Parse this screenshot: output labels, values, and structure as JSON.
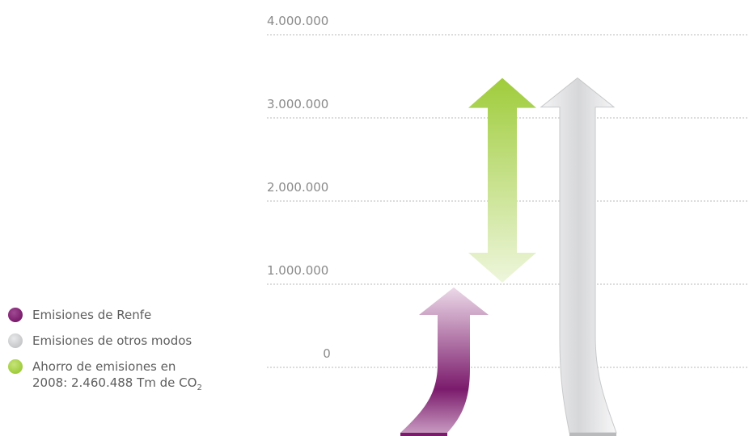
{
  "chart_data": {
    "type": "bar",
    "ylim": [
      0,
      4000000
    ],
    "ticks": [
      {
        "value": 4000000,
        "label": "4.000.000"
      },
      {
        "value": 3000000,
        "label": "3.000.000"
      },
      {
        "value": 2000000,
        "label": "2.000.000"
      },
      {
        "value": 1000000,
        "label": "1.000.000"
      },
      {
        "value": 0,
        "label": "0"
      }
    ],
    "grid": true,
    "series": [
      {
        "name": "Emisiones de Renfe",
        "value": 1000000,
        "color": "#7b1b6c"
      },
      {
        "name": "Emisiones de otros modos",
        "value": 3460488,
        "color": "#cfd0d2"
      },
      {
        "name": "Ahorro de emisiones en 2008: 2.460.488 Tm de CO2",
        "value": 2460488,
        "color": "#a9cf3f"
      }
    ],
    "legend_position": "left-bottom"
  },
  "legend": {
    "items": [
      {
        "label": "Emisiones de Renfe",
        "color": "#7b1b6c"
      },
      {
        "label": "Emisiones de otros modos",
        "color": "#cfd0d2"
      },
      {
        "label": "Ahorro de emisiones en",
        "line2": "2008: 2.460.488 Tm de CO",
        "sub": "2",
        "color": "#a9cf3f"
      }
    ]
  }
}
